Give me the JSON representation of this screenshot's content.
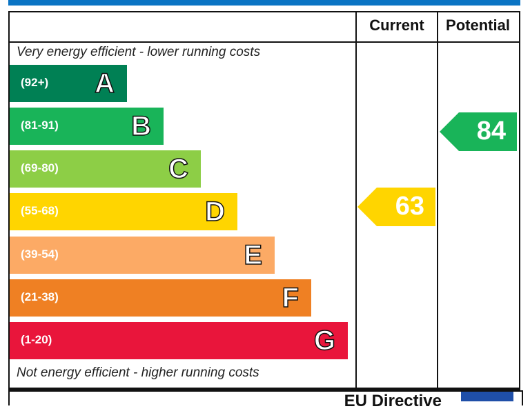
{
  "header": {
    "current_label": "Current",
    "potential_label": "Potential"
  },
  "captions": {
    "top": "Very energy efficient - lower running costs",
    "bottom": "Not energy efficient - higher running costs"
  },
  "footer": {
    "text": "EU Directive"
  },
  "chart_data": {
    "type": "bar",
    "bands": [
      {
        "letter": "A",
        "range": "(92+)",
        "color": "#008054"
      },
      {
        "letter": "B",
        "range": "(81-91)",
        "color": "#19b459"
      },
      {
        "letter": "C",
        "range": "(69-80)",
        "color": "#8dce46"
      },
      {
        "letter": "D",
        "range": "(55-68)",
        "color": "#ffd500"
      },
      {
        "letter": "E",
        "range": "(39-54)",
        "color": "#fcaa65"
      },
      {
        "letter": "F",
        "range": "(21-38)",
        "color": "#ef8023"
      },
      {
        "letter": "G",
        "range": "(1-20)",
        "color": "#e9153b"
      }
    ],
    "current": {
      "value": "63",
      "band": "D",
      "color": "#ffd500"
    },
    "potential": {
      "value": "84",
      "band": "B",
      "color": "#19b459"
    }
  }
}
